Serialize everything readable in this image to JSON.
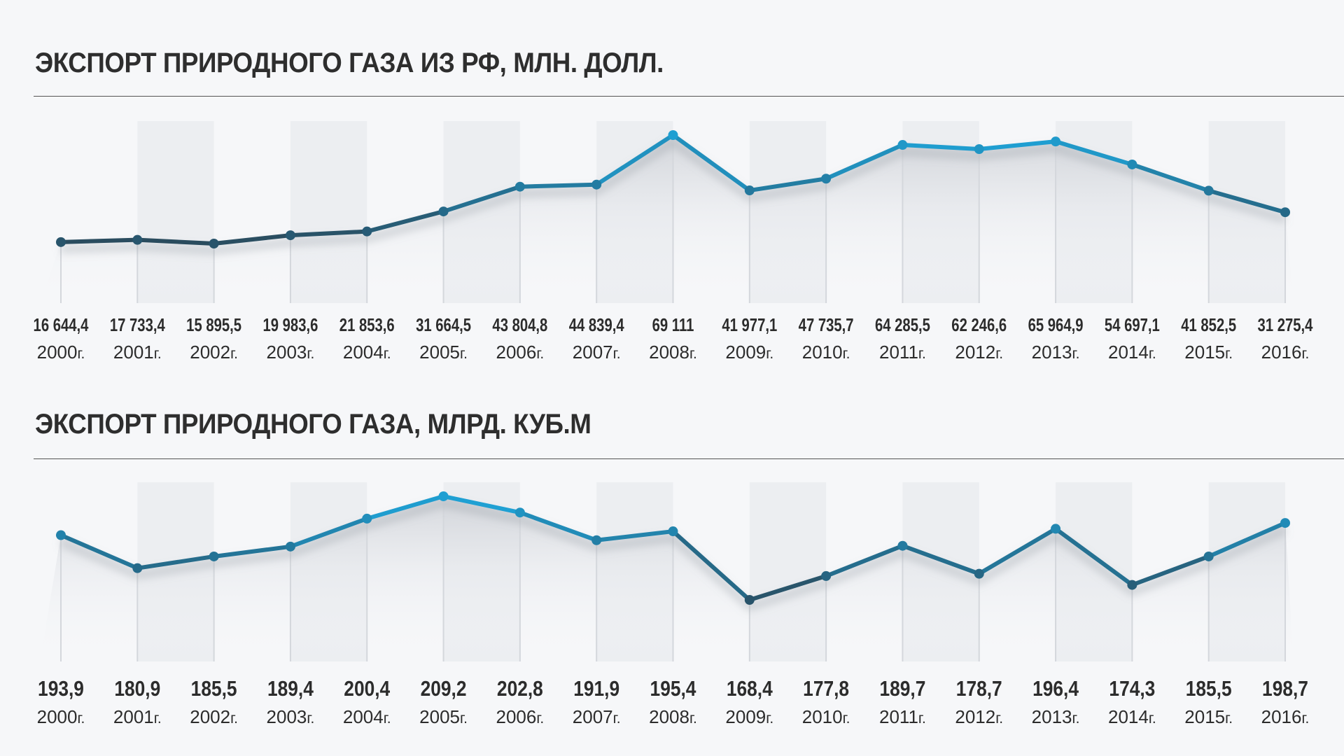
{
  "year_suffix": "г.",
  "chart_data": [
    {
      "type": "line",
      "title": "ЭКСПОРТ ПРИРОДНОГО ГАЗА ИЗ РФ, МЛН. ДОЛЛ.",
      "xlabel": "",
      "ylabel": "",
      "categories": [
        "2000",
        "2001",
        "2002",
        "2003",
        "2004",
        "2005",
        "2006",
        "2007",
        "2008",
        "2009",
        "2010",
        "2011",
        "2012",
        "2013",
        "2014",
        "2015",
        "2016"
      ],
      "values": [
        16644.4,
        17733.4,
        15895.5,
        19983.6,
        21853.6,
        31664.5,
        43804.8,
        44839.4,
        69111,
        41977.1,
        47735.7,
        64285.5,
        62246.6,
        65964.9,
        54697.1,
        41852.5,
        31275.4
      ],
      "value_labels": [
        "16 644,4",
        "17 733,4",
        "15 895,5",
        "19 983,6",
        "21 853,6",
        "31 664,5",
        "43 804,8",
        "44 839,4",
        "69 111",
        "41 977,1",
        "47 735,7",
        "64 285,5",
        "62 246,6",
        "65 964,9",
        "54 697,1",
        "41 852,5",
        "31 275,4"
      ],
      "ylim": [
        15895.5,
        69111
      ],
      "grid": false,
      "legend": "none",
      "colors": {
        "low": "#2a4a5c",
        "high": "#1ea7dd",
        "marker": "#28536a",
        "label": "#2c2c2c"
      }
    },
    {
      "type": "line",
      "title": "ЭКСПОРТ ПРИРОДНОГО ГАЗА, МЛРД. КУБ.М",
      "xlabel": "",
      "ylabel": "",
      "categories": [
        "2000",
        "2001",
        "2002",
        "2003",
        "2004",
        "2005",
        "2006",
        "2007",
        "2008",
        "2009",
        "2010",
        "2011",
        "2012",
        "2013",
        "2014",
        "2015",
        "2016"
      ],
      "values": [
        193.9,
        180.9,
        185.5,
        189.4,
        200.4,
        209.2,
        202.8,
        191.9,
        195.4,
        168.4,
        177.8,
        189.7,
        178.7,
        196.4,
        174.3,
        185.5,
        198.7
      ],
      "value_labels": [
        "193,9",
        "180,9",
        "185,5",
        "189,4",
        "200,4",
        "209,2",
        "202,8",
        "191,9",
        "195,4",
        "168,4",
        "177,8",
        "189,7",
        "178,7",
        "196,4",
        "174,3",
        "185,5",
        "198,7"
      ],
      "ylim": [
        168.4,
        209.2
      ],
      "grid": false,
      "legend": "none",
      "colors": {
        "low": "#2a4a5c",
        "high": "#1ea7dd",
        "marker": "#28536a",
        "label": "#2c2c2c"
      }
    }
  ]
}
